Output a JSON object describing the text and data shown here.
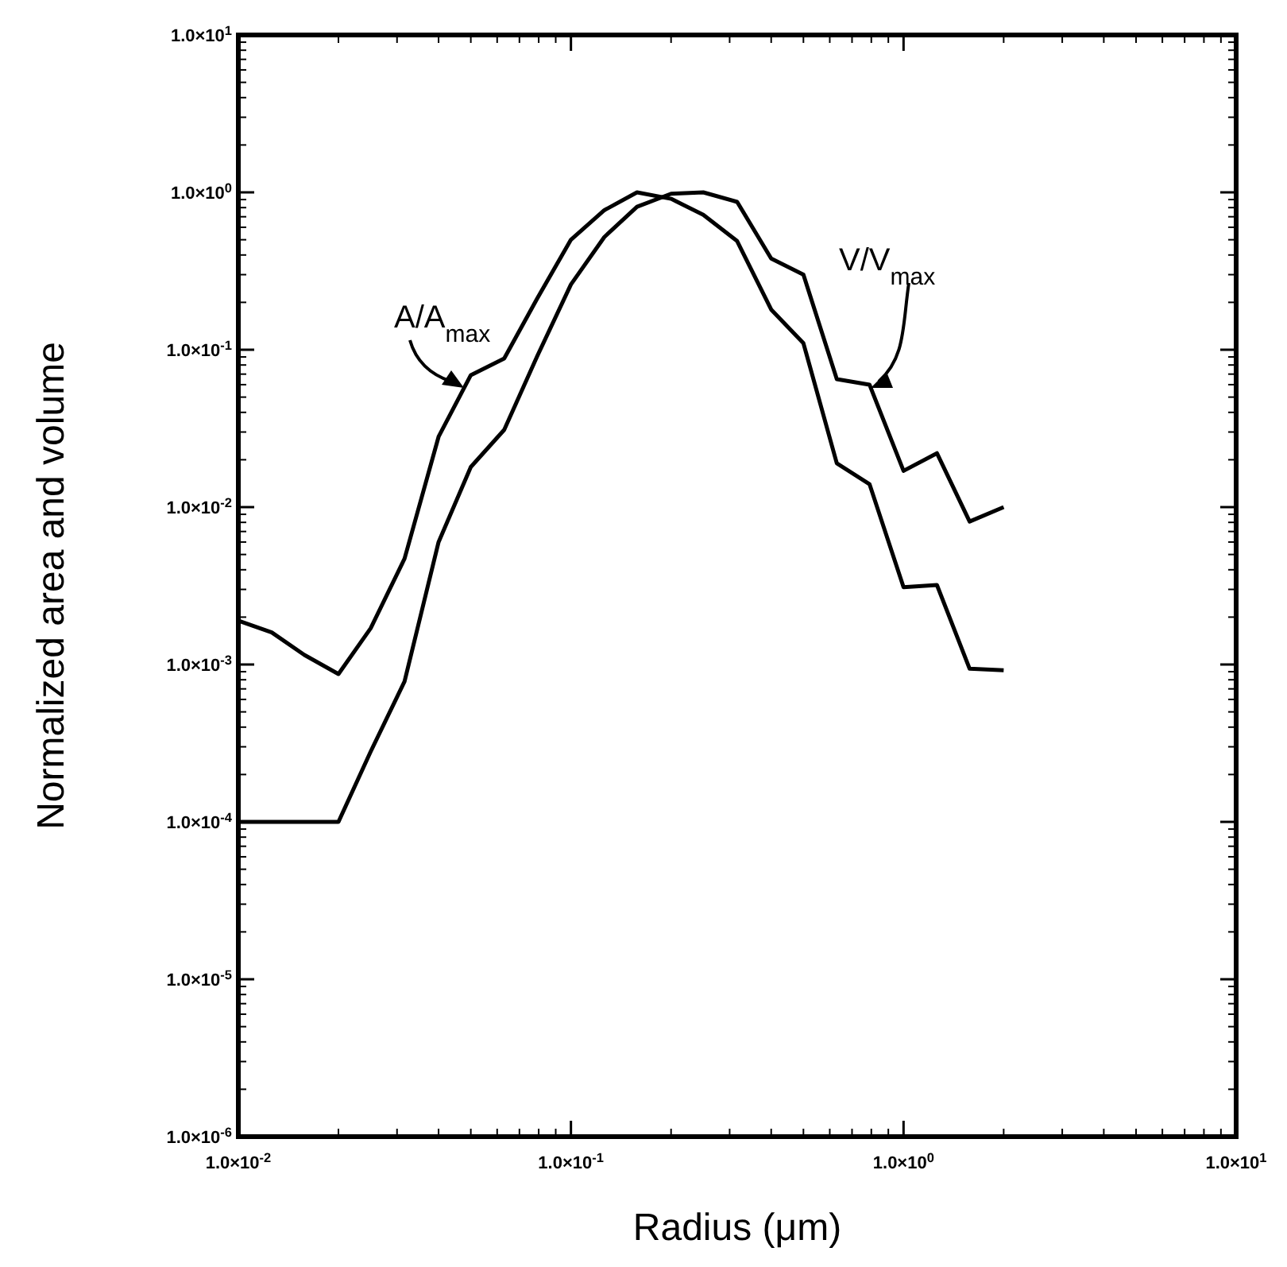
{
  "chart_data": {
    "type": "line",
    "xlabel": "Radius (μm)",
    "ylabel": "Normalized area and volume",
    "log": "xy",
    "grid": false,
    "marker": "none",
    "line_style": "solid",
    "xlim": [
      0.01,
      10
    ],
    "xticks": [
      {
        "value": 0.01,
        "label": "1.0×10$^{-2}$"
      },
      {
        "value": 0.1,
        "label": "1.0×10$^{-1}$"
      },
      {
        "value": 1,
        "label": "1.0×10$^{0}$"
      },
      {
        "value": 10,
        "label": "1.0×10$^{1}$"
      }
    ],
    "ylim": [
      1e-06,
      10
    ],
    "yticks": [
      {
        "value": 1e-06,
        "label": "1.0×10$^{-6}$"
      },
      {
        "value": 1e-05,
        "label": "1.0×10$^{-5}$"
      },
      {
        "value": 0.0001,
        "label": "1.0×10$^{-4}$"
      },
      {
        "value": 0.001,
        "label": "1.0×10$^{-3}$"
      },
      {
        "value": 0.01,
        "label": "1.0×10$^{-2}$"
      },
      {
        "value": 0.1,
        "label": "1.0×10$^{-1}$"
      },
      {
        "value": 1,
        "label": "1.0×10$^{0}$"
      },
      {
        "value": 10,
        "label": "1.0×10$^{1}$"
      }
    ],
    "x": [
      0.01,
      0.0126,
      0.0158,
      0.02,
      0.025,
      0.0316,
      0.04,
      0.05,
      0.063,
      0.079,
      0.1,
      0.126,
      0.158,
      0.2,
      0.25,
      0.316,
      0.4,
      0.5,
      0.63,
      0.79,
      1.0,
      1.26,
      1.58,
      2.0
    ],
    "series": [
      {
        "name": "A/A$_{max}$",
        "color": "#000000",
        "values": [
          0.0019,
          0.0016,
          0.00115,
          0.00087,
          0.0017,
          0.0047,
          0.028,
          0.069,
          0.088,
          0.21,
          0.5,
          0.77,
          1.0,
          0.91,
          0.72,
          0.49,
          0.18,
          0.11,
          0.019,
          0.014,
          0.0031,
          0.0032,
          0.00094,
          0.00092
        ]
      },
      {
        "name": "V/V$_{max}$",
        "color": "#000000",
        "values": [
          0.0001,
          0.0001,
          0.0001,
          0.0001,
          0.00028,
          0.00078,
          0.006,
          0.018,
          0.031,
          0.09,
          0.26,
          0.52,
          0.81,
          0.98,
          1.0,
          0.87,
          0.38,
          0.3,
          0.065,
          0.06,
          0.017,
          0.022,
          0.0081,
          0.01
        ]
      }
    ]
  }
}
